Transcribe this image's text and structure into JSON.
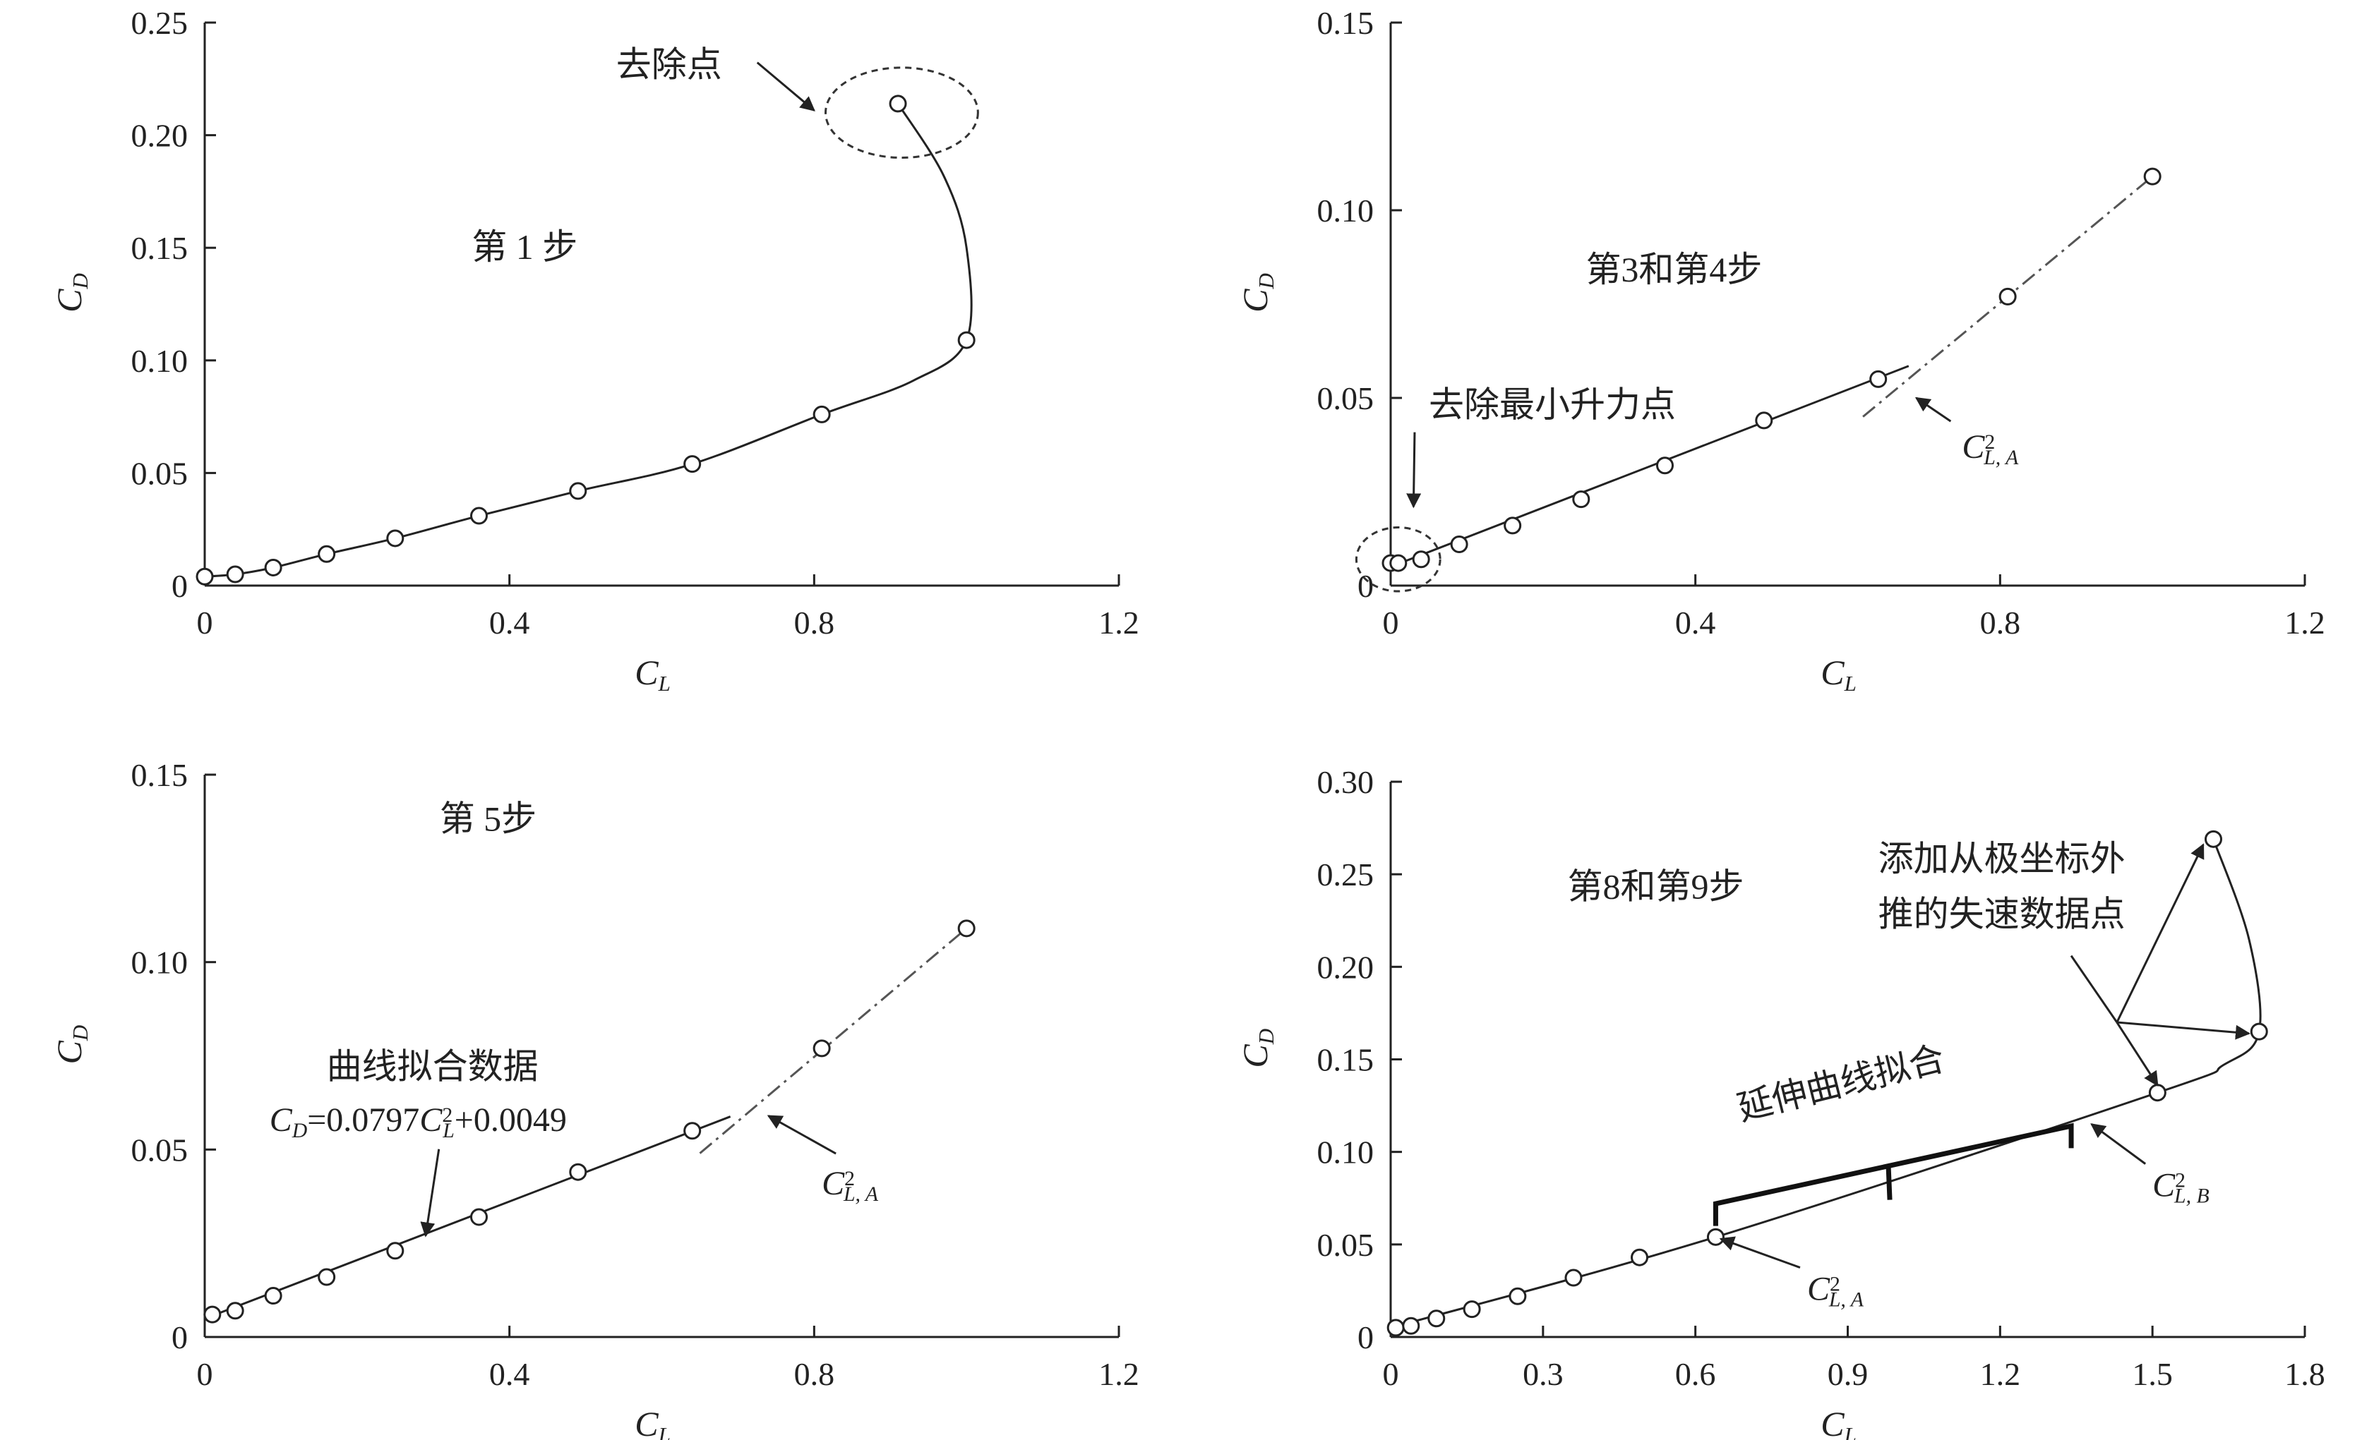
{
  "chart_data": [
    {
      "type": "scatter",
      "panel_label": "第 1 步",
      "xlabel": "C",
      "xlabel_sub": "L",
      "ylabel": "C",
      "ylabel_sub": "D",
      "xlim": [
        0,
        1.2
      ],
      "ylim": [
        0,
        0.25
      ],
      "xticks": [
        0,
        0.4,
        0.8,
        1.2
      ],
      "xtick_labels": [
        "0",
        "0.4",
        "0.8",
        "1.2"
      ],
      "yticks": [
        0,
        0.05,
        0.1,
        0.15,
        0.2,
        0.25
      ],
      "ytick_labels": [
        "0",
        "0.05",
        "0.10",
        "0.15",
        "0.20",
        "0.25"
      ],
      "points": [
        [
          0.0,
          0.004
        ],
        [
          0.04,
          0.005
        ],
        [
          0.09,
          0.008
        ],
        [
          0.16,
          0.014
        ],
        [
          0.25,
          0.021
        ],
        [
          0.36,
          0.031
        ],
        [
          0.49,
          0.042
        ],
        [
          0.64,
          0.054
        ],
        [
          0.81,
          0.076
        ],
        [
          1.0,
          0.109
        ],
        [
          0.91,
          0.214
        ]
      ],
      "curve": [
        [
          0.0,
          0.004
        ],
        [
          0.04,
          0.005
        ],
        [
          0.09,
          0.008
        ],
        [
          0.16,
          0.014
        ],
        [
          0.25,
          0.021
        ],
        [
          0.36,
          0.031
        ],
        [
          0.49,
          0.042
        ],
        [
          0.64,
          0.054
        ],
        [
          0.81,
          0.076
        ],
        [
          0.93,
          0.091
        ],
        [
          1.0,
          0.109
        ],
        [
          1.0,
          0.15
        ],
        [
          0.97,
          0.182
        ],
        [
          0.91,
          0.214
        ]
      ],
      "annotations": [
        {
          "text": "去除点",
          "x": 0.54,
          "y": 0.226,
          "ax": 0.8,
          "ay": 0.211
        }
      ],
      "ellipse": {
        "cx": 0.915,
        "cy": 0.21,
        "rx": 0.1,
        "ry": 0.02
      }
    },
    {
      "type": "scatter",
      "panel_label": "第3和第4步",
      "xlabel": "C",
      "xlabel_sub": "L",
      "ylabel": "C",
      "ylabel_sub": "D",
      "xlim": [
        0,
        1.2
      ],
      "ylim": [
        0,
        0.15
      ],
      "xticks": [
        0,
        0.4,
        0.8,
        1.2
      ],
      "xtick_labels": [
        "0",
        "0.4",
        "0.8",
        "1.2"
      ],
      "yticks": [
        0,
        0.05,
        0.1,
        0.15
      ],
      "ytick_labels": [
        "0",
        "0.05",
        "0.10",
        "0.15"
      ],
      "points": [
        [
          0.0,
          0.006
        ],
        [
          0.01,
          0.006
        ],
        [
          0.04,
          0.007
        ],
        [
          0.09,
          0.011
        ],
        [
          0.16,
          0.016
        ],
        [
          0.25,
          0.023
        ],
        [
          0.36,
          0.032
        ],
        [
          0.49,
          0.044
        ],
        [
          0.64,
          0.055
        ],
        [
          0.81,
          0.077
        ],
        [
          1.0,
          0.109
        ]
      ],
      "fit_line": {
        "x1": 0.01,
        "y1": 0.0058,
        "x2": 0.68,
        "y2": 0.0585
      },
      "dash_line": {
        "x1": 0.62,
        "y1": 0.045,
        "x2": 1.0,
        "y2": 0.109
      },
      "ellipse": {
        "cx": 0.01,
        "cy": 0.007,
        "rx": 0.055,
        "ry": 0.0085
      },
      "annotations": [
        {
          "text": "去除最小升力点",
          "x": 0.05,
          "y": 0.045,
          "ax": 0.03,
          "ay": 0.021
        },
        {
          "text": "C",
          "sup": "2",
          "sub": "L, A",
          "x": 0.75,
          "y": 0.034,
          "ax": 0.69,
          "ay": 0.05
        }
      ]
    },
    {
      "type": "scatter",
      "panel_label": "第 5步",
      "xlabel": "C",
      "xlabel_sub": "L",
      "ylabel": "C",
      "ylabel_sub": "D",
      "xlim": [
        0,
        1.2
      ],
      "ylim": [
        0,
        0.15
      ],
      "xticks": [
        0,
        0.4,
        0.8,
        1.2
      ],
      "xtick_labels": [
        "0",
        "0.4",
        "0.8",
        "1.2"
      ],
      "yticks": [
        0,
        0.05,
        0.1,
        0.15
      ],
      "ytick_labels": [
        "0",
        "0.05",
        "0.10",
        "0.15"
      ],
      "points": [
        [
          0.01,
          0.006
        ],
        [
          0.04,
          0.007
        ],
        [
          0.09,
          0.011
        ],
        [
          0.16,
          0.016
        ],
        [
          0.25,
          0.023
        ],
        [
          0.36,
          0.032
        ],
        [
          0.49,
          0.044
        ],
        [
          0.64,
          0.055
        ],
        [
          0.81,
          0.077
        ],
        [
          1.0,
          0.109
        ]
      ],
      "fit_line": {
        "x1": 0.0,
        "y1": 0.0049,
        "x2": 0.69,
        "y2": 0.0588
      },
      "dash_line": {
        "x1": 0.65,
        "y1": 0.049,
        "x2": 1.0,
        "y2": 0.109
      },
      "annotations": [
        {
          "text": "曲线拟合数据",
          "x": 0.16,
          "y": 0.069
        },
        {
          "text": "C",
          "sub": "D",
          "rest": "=0.0797C",
          "sup2": "2",
          "sub2": "L",
          "tail": "+0.0049",
          "x": 0.085,
          "y": 0.055,
          "ax": 0.29,
          "ay": 0.027
        },
        {
          "text": "C",
          "sup": "2",
          "sub": "L, A",
          "x": 0.81,
          "y": 0.038,
          "ax": 0.74,
          "ay": 0.059
        }
      ]
    },
    {
      "type": "scatter",
      "panel_label": "第8和第9步",
      "xlabel": "C",
      "xlabel_sub": "L",
      "ylabel": "C",
      "ylabel_sub": "D",
      "xlim": [
        0,
        1.8
      ],
      "ylim": [
        0,
        0.3
      ],
      "xticks": [
        0,
        0.3,
        0.6,
        0.9,
        1.2,
        1.5,
        1.8
      ],
      "xtick_labels": [
        "0",
        "0.3",
        "0.6",
        "0.9",
        "1.2",
        "1.5",
        "1.8"
      ],
      "yticks": [
        0,
        0.05,
        0.1,
        0.15,
        0.2,
        0.25,
        0.3
      ],
      "ytick_labels": [
        "0",
        "0.05",
        "0.10",
        "0.15",
        "0.20",
        "0.25",
        "0.30"
      ],
      "points": [
        [
          0.01,
          0.005
        ],
        [
          0.04,
          0.006
        ],
        [
          0.09,
          0.01
        ],
        [
          0.16,
          0.015
        ],
        [
          0.25,
          0.022
        ],
        [
          0.36,
          0.032
        ],
        [
          0.49,
          0.043
        ],
        [
          0.64,
          0.054
        ],
        [
          1.51,
          0.132
        ],
        [
          1.71,
          0.165
        ],
        [
          1.62,
          0.269
        ]
      ],
      "curve": [
        [
          0.0,
          0.005
        ],
        [
          0.64,
          0.054
        ],
        [
          1.51,
          0.132
        ],
        [
          1.64,
          0.147
        ],
        [
          1.71,
          0.165
        ],
        [
          1.69,
          0.215
        ],
        [
          1.62,
          0.269
        ]
      ],
      "bracket": {
        "x1": 0.64,
        "x2": 1.34,
        "y": 0.072,
        "tip_y": 0.06,
        "peak_x": 0.98,
        "peak_y": 0.085
      },
      "annotations": [
        {
          "text": "延伸曲线拟合",
          "x": 0.69,
          "y": 0.117,
          "rotate": -14
        },
        {
          "text": "添加从极坐标外",
          "x": 0.96,
          "y": 0.252
        },
        {
          "text": "推的失速数据点",
          "x": 0.96,
          "y": 0.222
        },
        {
          "text": "C",
          "sup": "2",
          "sub": "L, A",
          "x": 0.82,
          "y": 0.02,
          "ax": 0.65,
          "ay": 0.053
        },
        {
          "text": "C",
          "sup": "2",
          "sub": "L, B",
          "x": 1.5,
          "y": 0.076,
          "ax": 1.38,
          "ay": 0.115
        }
      ],
      "fan": {
        "origin": [
          1.43,
          0.17
        ],
        "targets": [
          [
            1.51,
            0.136
          ],
          [
            1.69,
            0.164
          ],
          [
            1.6,
            0.266
          ]
        ]
      },
      "pointer": {
        "from": [
          1.34,
          0.206
        ],
        "to": [
          1.43,
          0.17
        ]
      }
    }
  ]
}
